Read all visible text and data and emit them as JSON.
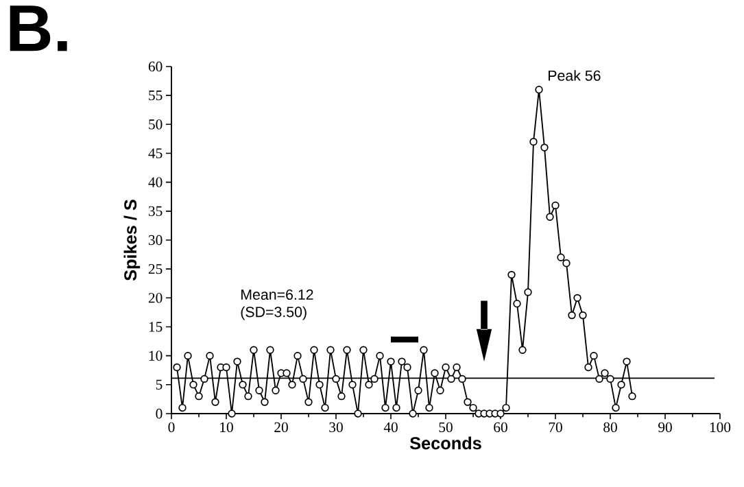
{
  "chart_data": {
    "type": "line",
    "title": "B.",
    "xlabel": "Seconds",
    "ylabel": "Spikes / S",
    "x": [
      1,
      2,
      3,
      4,
      5,
      6,
      7,
      8,
      9,
      10,
      11,
      12,
      13,
      14,
      15,
      16,
      17,
      18,
      19,
      20,
      21,
      22,
      23,
      24,
      25,
      26,
      27,
      28,
      29,
      30,
      31,
      32,
      33,
      34,
      35,
      36,
      37,
      38,
      39,
      40,
      41,
      42,
      43,
      44,
      45,
      46,
      47,
      48,
      49,
      50,
      51,
      52,
      53,
      54,
      55,
      56,
      57,
      58,
      59,
      60,
      61,
      62,
      63,
      64,
      65,
      66,
      67,
      68,
      69,
      70,
      71,
      72,
      73,
      74,
      75,
      76,
      77,
      78,
      79,
      80,
      81,
      82,
      83,
      84
    ],
    "series": [
      {
        "color": "#000000",
        "values": [
          8,
          1,
          10,
          5,
          3,
          6,
          10,
          2,
          8,
          8,
          0,
          9,
          5,
          3,
          11,
          4,
          2,
          11,
          4,
          7,
          7,
          5,
          10,
          6,
          2,
          11,
          5,
          1,
          11,
          6,
          3,
          11,
          5,
          0,
          11,
          5,
          6,
          10,
          1,
          9,
          1,
          9,
          8,
          0,
          4,
          11,
          1,
          7,
          4,
          8,
          6,
          8,
          6,
          2,
          1,
          0,
          0,
          0,
          0,
          0,
          1,
          24,
          19,
          11,
          21,
          47,
          56,
          46,
          34,
          36,
          27,
          26,
          17,
          20,
          17,
          8,
          10,
          6,
          7,
          6,
          1,
          5,
          9,
          3
        ]
      }
    ],
    "xlim": [
      0,
      100
    ],
    "ylim": [
      0,
      60
    ],
    "xticks": [
      0,
      10,
      20,
      30,
      40,
      50,
      60,
      70,
      80,
      90,
      100
    ],
    "yticks": [
      0,
      5,
      10,
      15,
      20,
      25,
      30,
      35,
      40,
      45,
      50,
      55,
      60
    ],
    "marker": "circle",
    "line_style": "solid",
    "grid": false,
    "ref_lines": [
      {
        "axis": "y",
        "value": 6.12,
        "color": "#000000"
      }
    ],
    "annotations": [
      "Mean=6.12",
      "(SD=3.50)",
      {
        "text": "Peak 56",
        "x": 67,
        "y": 56
      }
    ]
  }
}
